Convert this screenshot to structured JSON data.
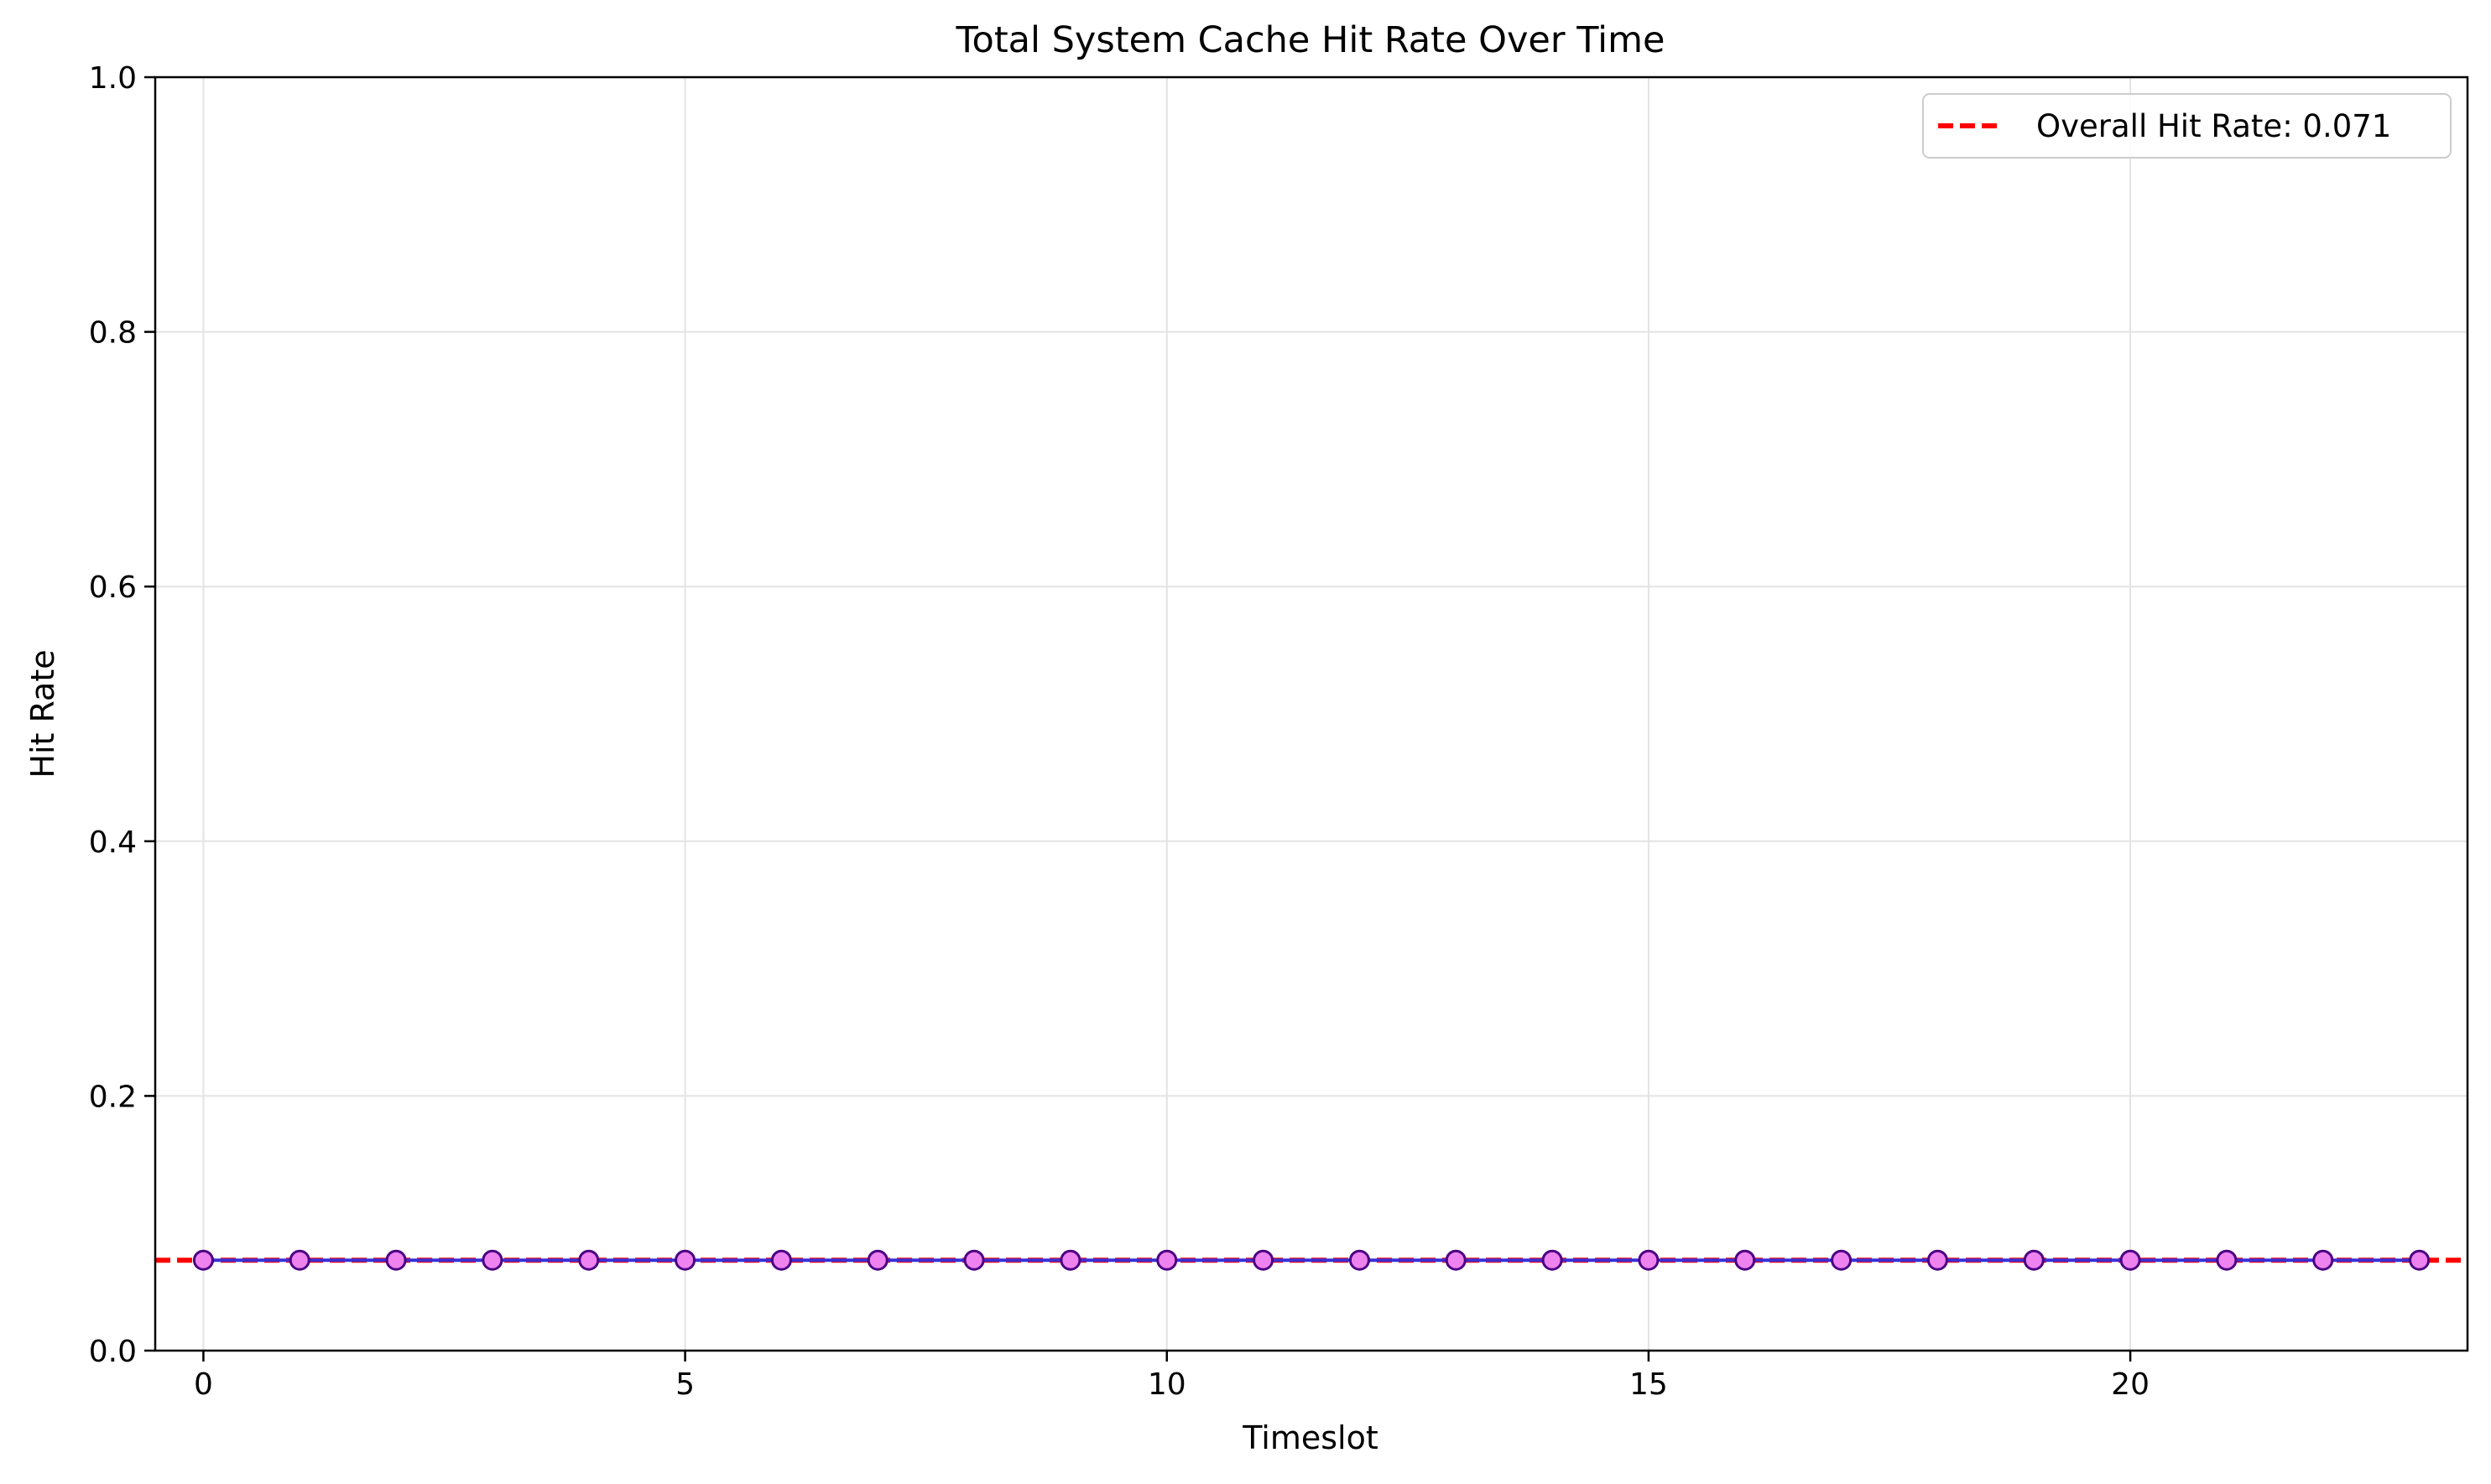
{
  "chart_data": {
    "type": "line",
    "title": "Total System Cache Hit Rate Over Time",
    "xlabel": "Timeslot",
    "ylabel": "Hit Rate",
    "xlim": [
      -0.5,
      23.5
    ],
    "ylim": [
      0,
      1.0
    ],
    "x_ticks": [
      0,
      5,
      10,
      15,
      20
    ],
    "x_tick_labels": [
      "0",
      "5",
      "10",
      "15",
      "20"
    ],
    "y_ticks": [
      0,
      0.2,
      0.4,
      0.6,
      0.8,
      1.0
    ],
    "y_tick_labels": [
      "0.0",
      "0.2",
      "0.4",
      "0.6",
      "0.8",
      "1.0"
    ],
    "grid": true,
    "legend_position": "top-right",
    "legend_entries": [
      "Overall Hit Rate: 0.071"
    ],
    "series": [
      {
        "x": [
          0,
          1,
          2,
          3,
          4,
          5,
          6,
          7,
          8,
          9,
          10,
          11,
          12,
          13,
          14,
          15,
          16,
          17,
          18,
          19,
          20,
          21,
          22,
          23
        ],
        "values": [
          0.071,
          0.071,
          0.071,
          0.071,
          0.071,
          0.071,
          0.071,
          0.071,
          0.071,
          0.071,
          0.071,
          0.071,
          0.071,
          0.071,
          0.071,
          0.071,
          0.071,
          0.071,
          0.071,
          0.071,
          0.071,
          0.071,
          0.071,
          0.071
        ],
        "line_color": "#3a2fd6",
        "marker_fill": "#ee82ee",
        "marker_edge": "#4b0082"
      }
    ],
    "reference_line": {
      "value": 0.071,
      "color": "#ff0000",
      "style": "dashed"
    }
  }
}
